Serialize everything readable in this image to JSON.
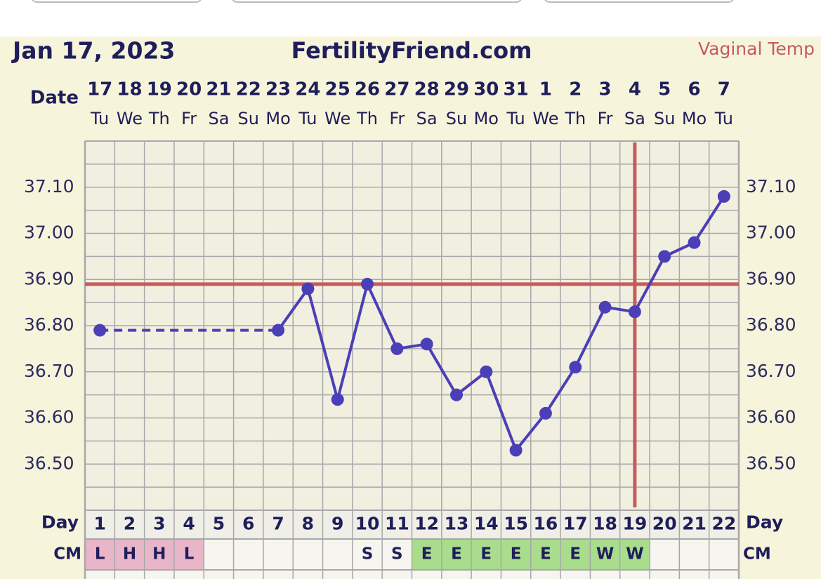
{
  "header": {
    "title": "Jan 17, 2023",
    "site": "FertilityFriend.com",
    "temp_type": "Vaginal Temp"
  },
  "chart_data": {
    "type": "line",
    "date_label": "Date",
    "dates": [
      17,
      18,
      19,
      20,
      21,
      22,
      23,
      24,
      25,
      26,
      27,
      28,
      29,
      30,
      31,
      1,
      2,
      3,
      4,
      5,
      6,
      7
    ],
    "weekdays": [
      "Tu",
      "We",
      "Th",
      "Fr",
      "Sa",
      "Su",
      "Mo",
      "Tu",
      "We",
      "Th",
      "Fr",
      "Sa",
      "Su",
      "Mo",
      "Tu",
      "We",
      "Th",
      "Fr",
      "Sa",
      "Su",
      "Mo",
      "Tu"
    ],
    "day_label": "Day",
    "categories": [
      1,
      2,
      3,
      4,
      5,
      6,
      7,
      8,
      9,
      10,
      11,
      12,
      13,
      14,
      15,
      16,
      17,
      18,
      19,
      20,
      21,
      22
    ],
    "values": [
      36.79,
      null,
      null,
      null,
      null,
      null,
      36.79,
      36.88,
      36.64,
      36.89,
      36.75,
      36.76,
      36.65,
      36.7,
      36.53,
      36.61,
      36.71,
      36.84,
      36.83,
      36.95,
      36.98,
      37.08
    ],
    "color": "#4b3fb8",
    "coverline": 36.89,
    "coverline_color": "#c75b5b",
    "ovulation_day": 19,
    "ylim": [
      36.4,
      37.2
    ],
    "yticks": [
      {
        "value": 36.5,
        "label": "36.50"
      },
      {
        "value": 36.6,
        "label": "36.60"
      },
      {
        "value": 36.7,
        "label": "36.70"
      },
      {
        "value": 36.8,
        "label": "36.80"
      },
      {
        "value": 36.9,
        "label": "36.90"
      },
      {
        "value": 37.0,
        "label": "37.00"
      },
      {
        "value": 37.1,
        "label": "37.10"
      }
    ],
    "minor_yticks": [
      36.45,
      36.55,
      36.65,
      36.75,
      36.85,
      36.95,
      37.05,
      37.15
    ],
    "grid": true,
    "cm_label": "CM",
    "cm": [
      "L",
      "H",
      "H",
      "L",
      null,
      null,
      null,
      null,
      null,
      "S",
      "S",
      "E",
      "E",
      "E",
      "E",
      "E",
      "E",
      "W",
      "W",
      null,
      null,
      null
    ],
    "cm_colors": {
      "L": "#e9b5c9",
      "H": "#e9b5c9",
      "E": "#a9dc8c",
      "W": "#a9dc8c"
    }
  }
}
